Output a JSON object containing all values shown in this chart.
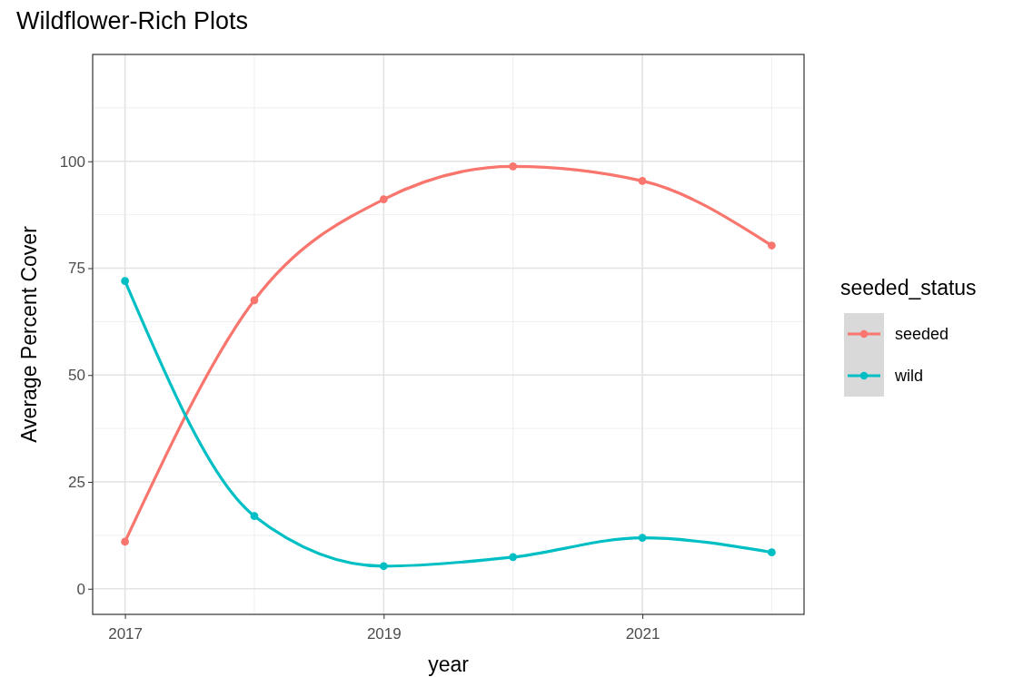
{
  "chart_data": {
    "type": "line",
    "title": "Wildflower-Rich Plots",
    "xlabel": "year",
    "ylabel": "Average Percent Cover",
    "legend_title": "seeded_status",
    "x": [
      2017,
      2018,
      2019,
      2020,
      2021,
      2022
    ],
    "series": [
      {
        "name": "seeded",
        "color": "#f8766d",
        "values": [
          11.0,
          67.5,
          91.1,
          98.8,
          95.4,
          80.3
        ]
      },
      {
        "name": "wild",
        "color": "#00bfc4",
        "values": [
          72.0,
          17.0,
          5.3,
          7.4,
          11.9,
          8.5
        ]
      }
    ],
    "xlim": [
      2016.75,
      2022.25
    ],
    "xticks": [
      2017,
      2019,
      2021
    ],
    "ylim": [
      -6,
      125
    ],
    "yticks": [
      0,
      25,
      50,
      75,
      100
    ],
    "grid": true,
    "legend": "right",
    "marker": "circle",
    "line_style": "solid"
  }
}
